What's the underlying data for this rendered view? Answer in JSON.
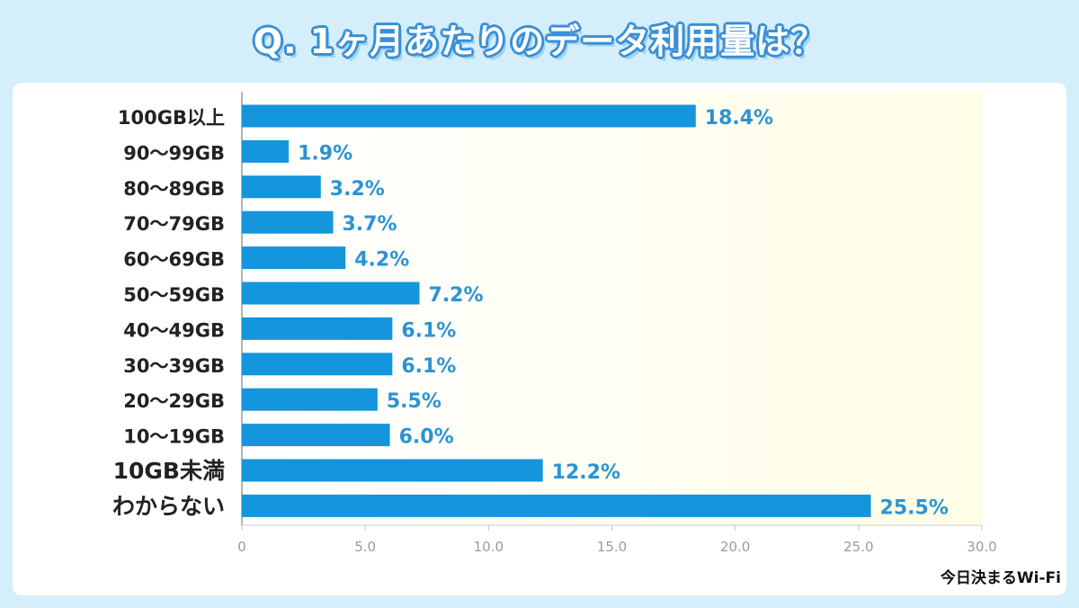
{
  "title": "Q. 1ヶ月あたりのデータ利用量は？",
  "credit": "今日決まるWi-Fi",
  "colors": {
    "bar": "#1595dc",
    "value_label": "#2b93d3",
    "plot_bg_end": "#fffde6",
    "background": "#d5eefb"
  },
  "chart_data": {
    "type": "bar",
    "orientation": "horizontal",
    "title": "Q. 1ヶ月あたりのデータ利用量は？",
    "categories": [
      "100GB以上",
      "90〜99GB",
      "80〜89GB",
      "70〜79GB",
      "60〜69GB",
      "50〜59GB",
      "40〜49GB",
      "30〜39GB",
      "20〜29GB",
      "10〜19GB",
      "10GB未満",
      "わからない"
    ],
    "values": [
      18.4,
      1.9,
      3.2,
      3.7,
      4.2,
      7.2,
      6.1,
      6.1,
      5.5,
      6.0,
      12.2,
      25.5
    ],
    "value_labels": [
      "18.4%",
      "1.9%",
      "3.2%",
      "3.7%",
      "4.2%",
      "7.2%",
      "6.1%",
      "6.1%",
      "5.5%",
      "6.0%",
      "12.2%",
      "25.5%"
    ],
    "xlim": [
      0,
      30
    ],
    "xticks": [
      "0",
      "5.0",
      "10.0",
      "15.0",
      "20.0",
      "25.0",
      "30.0"
    ],
    "xlabel": "",
    "ylabel": "",
    "grid": false,
    "unit": "%"
  }
}
